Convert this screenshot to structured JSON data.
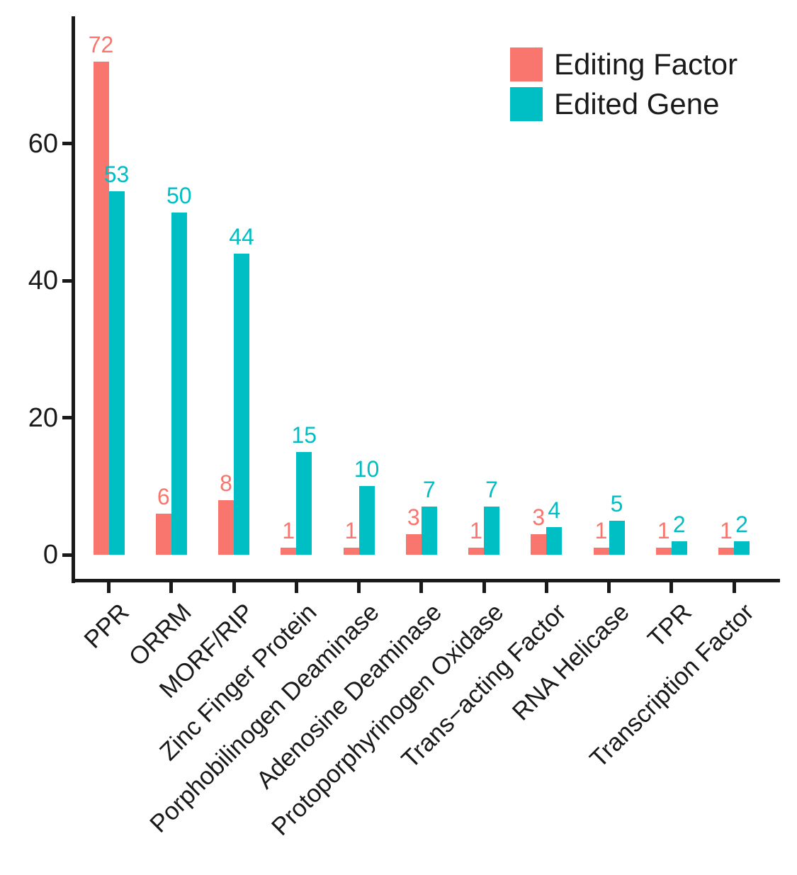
{
  "chart_data": {
    "type": "bar",
    "categories": [
      "PPR",
      "ORRM",
      "MORF/RIP",
      "Zinc Finger Protein",
      "Porphobilinogen Deaminase",
      "Adenosine Deaminase",
      "Protoporphyrinogen Oxidase",
      "Trans−acting Factor",
      "RNA Helicase",
      "TPR",
      "Transcription Factor"
    ],
    "series": [
      {
        "name": "Editing Factor",
        "color": "#F8766D",
        "values": [
          72,
          6,
          8,
          1,
          1,
          3,
          1,
          3,
          1,
          1,
          1
        ]
      },
      {
        "name": "Edited Gene",
        "color": "#00BFC4",
        "values": [
          53,
          50,
          44,
          15,
          10,
          7,
          7,
          4,
          5,
          2,
          2
        ]
      }
    ],
    "title": "",
    "xlabel": "",
    "ylabel": "",
    "yticks": [
      0,
      20,
      40,
      60
    ],
    "ylim": [
      0,
      78
    ],
    "grid": false,
    "legend_position": "top-right",
    "bar_value_labels": true,
    "axis_color": "#1a1a1a",
    "label_rotation_deg": 45
  }
}
